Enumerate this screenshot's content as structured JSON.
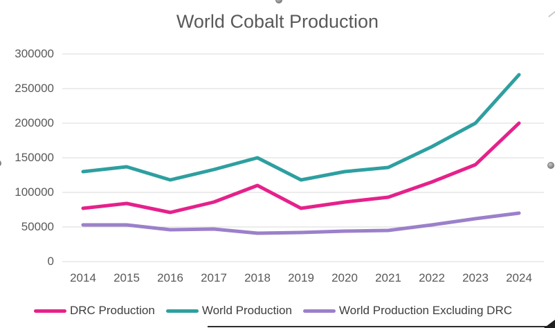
{
  "chart_data": {
    "type": "line",
    "title": "World Cobalt Production",
    "categories": [
      "2014",
      "2015",
      "2016",
      "2017",
      "2018",
      "2019",
      "2020",
      "2021",
      "2022",
      "2023",
      "2024"
    ],
    "series": [
      {
        "name": "DRC Production",
        "color": "#E5218B",
        "values": [
          77000,
          84000,
          71000,
          86000,
          110000,
          77000,
          86000,
          93000,
          115000,
          140000,
          200000
        ]
      },
      {
        "name": "World Production",
        "color": "#2E9FA0",
        "values": [
          130000,
          137000,
          118000,
          133000,
          150000,
          118000,
          130000,
          136000,
          166000,
          200000,
          270000
        ]
      },
      {
        "name": "World Production Excluding DRC",
        "color": "#9B80CA",
        "values": [
          53000,
          53000,
          46000,
          47000,
          41000,
          42000,
          44000,
          45000,
          53000,
          62000,
          70000
        ]
      }
    ],
    "xlabel": "",
    "ylabel": "",
    "ylim": [
      0,
      300000
    ],
    "yticks": [
      "0",
      "50000",
      "100000",
      "150000",
      "200000",
      "250000",
      "300000"
    ],
    "grid": true,
    "legend_position": "bottom"
  },
  "colors": {
    "title_text": "#595959",
    "axis_text": "#595959",
    "legend_text": "#3d3d3d",
    "gridline": "#D9D9D9",
    "background": "#ffffff"
  },
  "selection": {
    "handles": [
      "top-center",
      "left-middle",
      "right-middle"
    ]
  }
}
